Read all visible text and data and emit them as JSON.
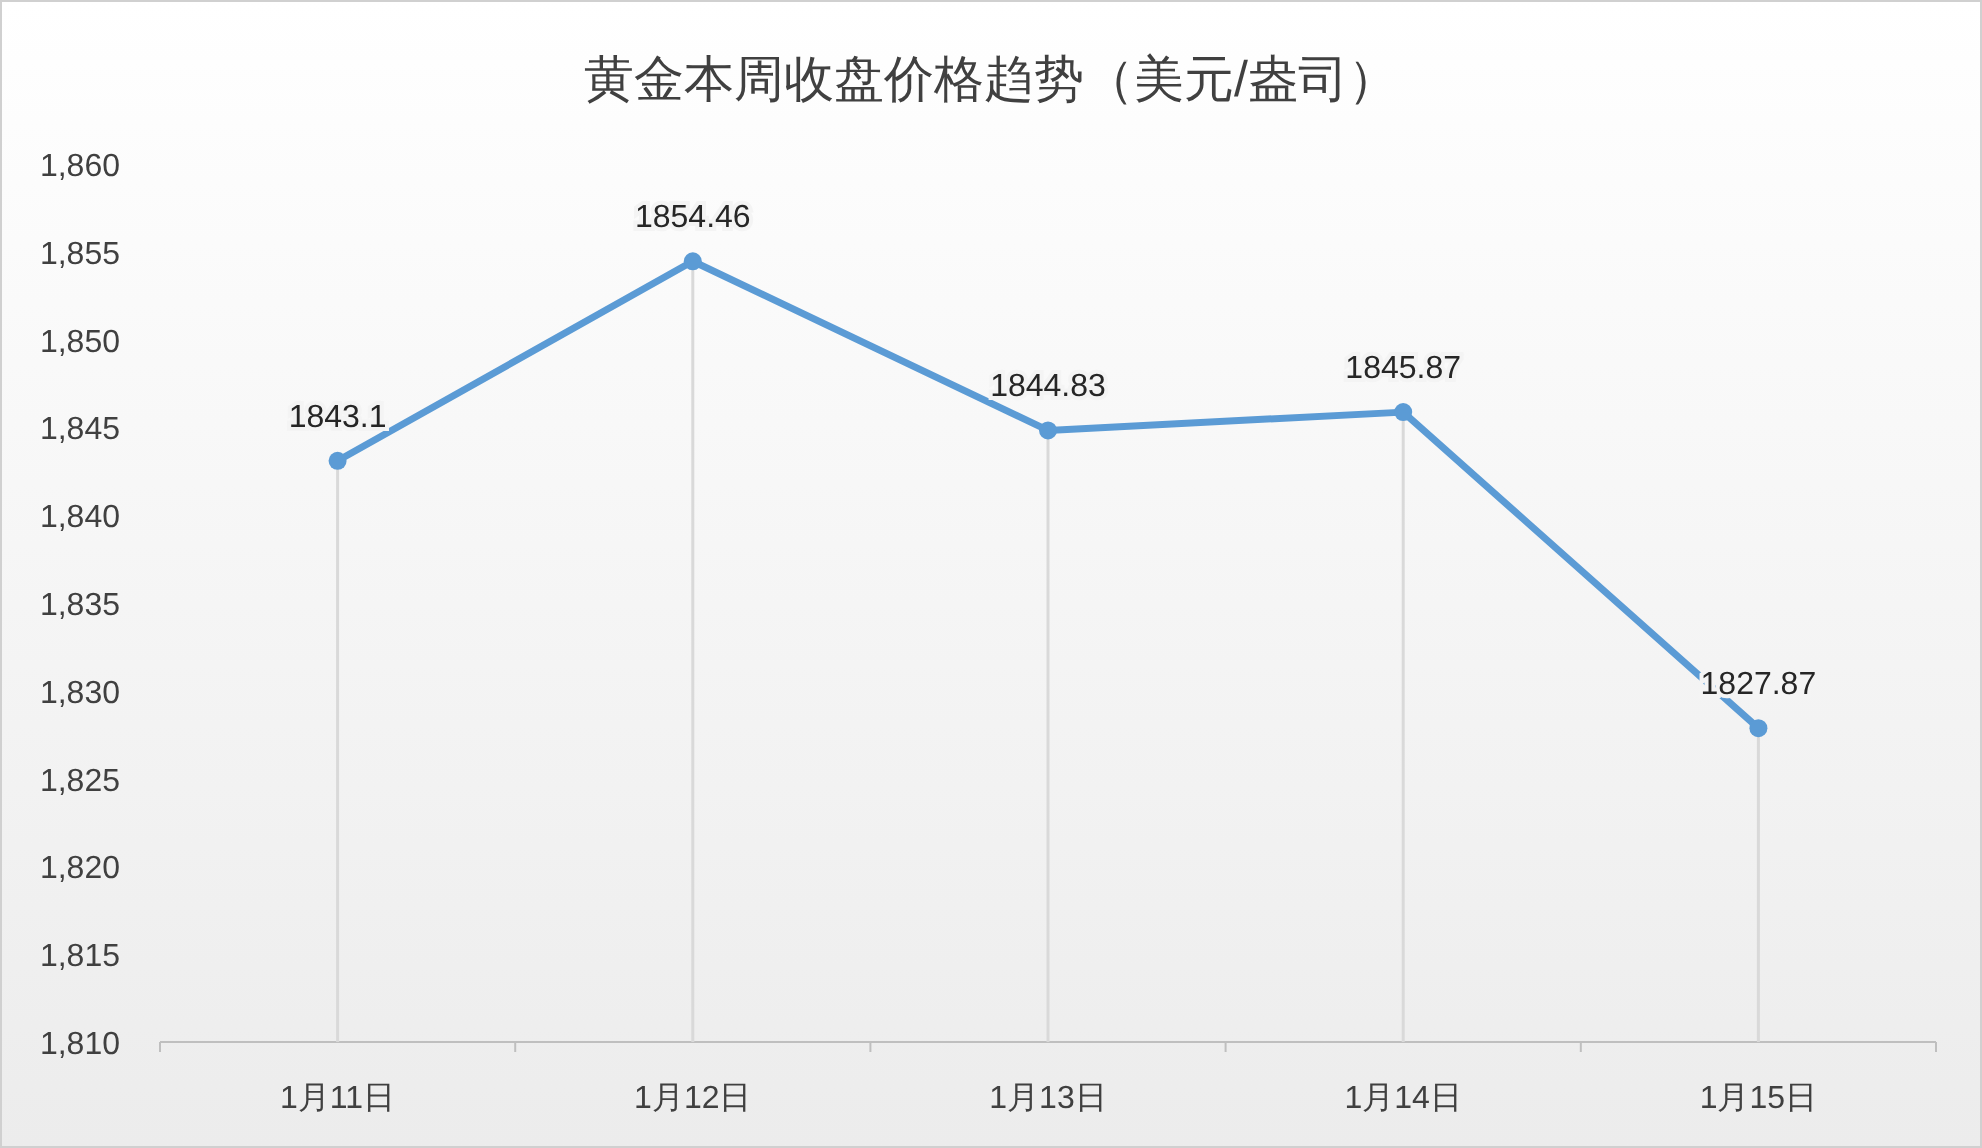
{
  "chart_data": {
    "type": "line",
    "title": "黄金本周收盘价格趋势（美元/盎司）",
    "categories": [
      "1月11日",
      "1月12日",
      "1月13日",
      "1月14日",
      "1月15日"
    ],
    "series": [
      {
        "color": "#5b9bd5",
        "values": [
          1843.1,
          1854.46,
          1844.83,
          1845.87,
          1827.87
        ]
      }
    ],
    "ylim": [
      1810,
      1860
    ],
    "yticks": [
      {
        "value": 1810,
        "label": "1,810"
      },
      {
        "value": 1815,
        "label": "1,815"
      },
      {
        "value": 1820,
        "label": "1,820"
      },
      {
        "value": 1825,
        "label": "1,825"
      },
      {
        "value": 1830,
        "label": "1,830"
      },
      {
        "value": 1835,
        "label": "1,835"
      },
      {
        "value": 1840,
        "label": "1,840"
      },
      {
        "value": 1845,
        "label": "1,845"
      },
      {
        "value": 1850,
        "label": "1,850"
      },
      {
        "value": 1855,
        "label": "1,855"
      },
      {
        "value": 1860,
        "label": "1,860"
      }
    ],
    "data_labels": true,
    "marker": "circle",
    "line_style": "solid",
    "grid": "x"
  }
}
